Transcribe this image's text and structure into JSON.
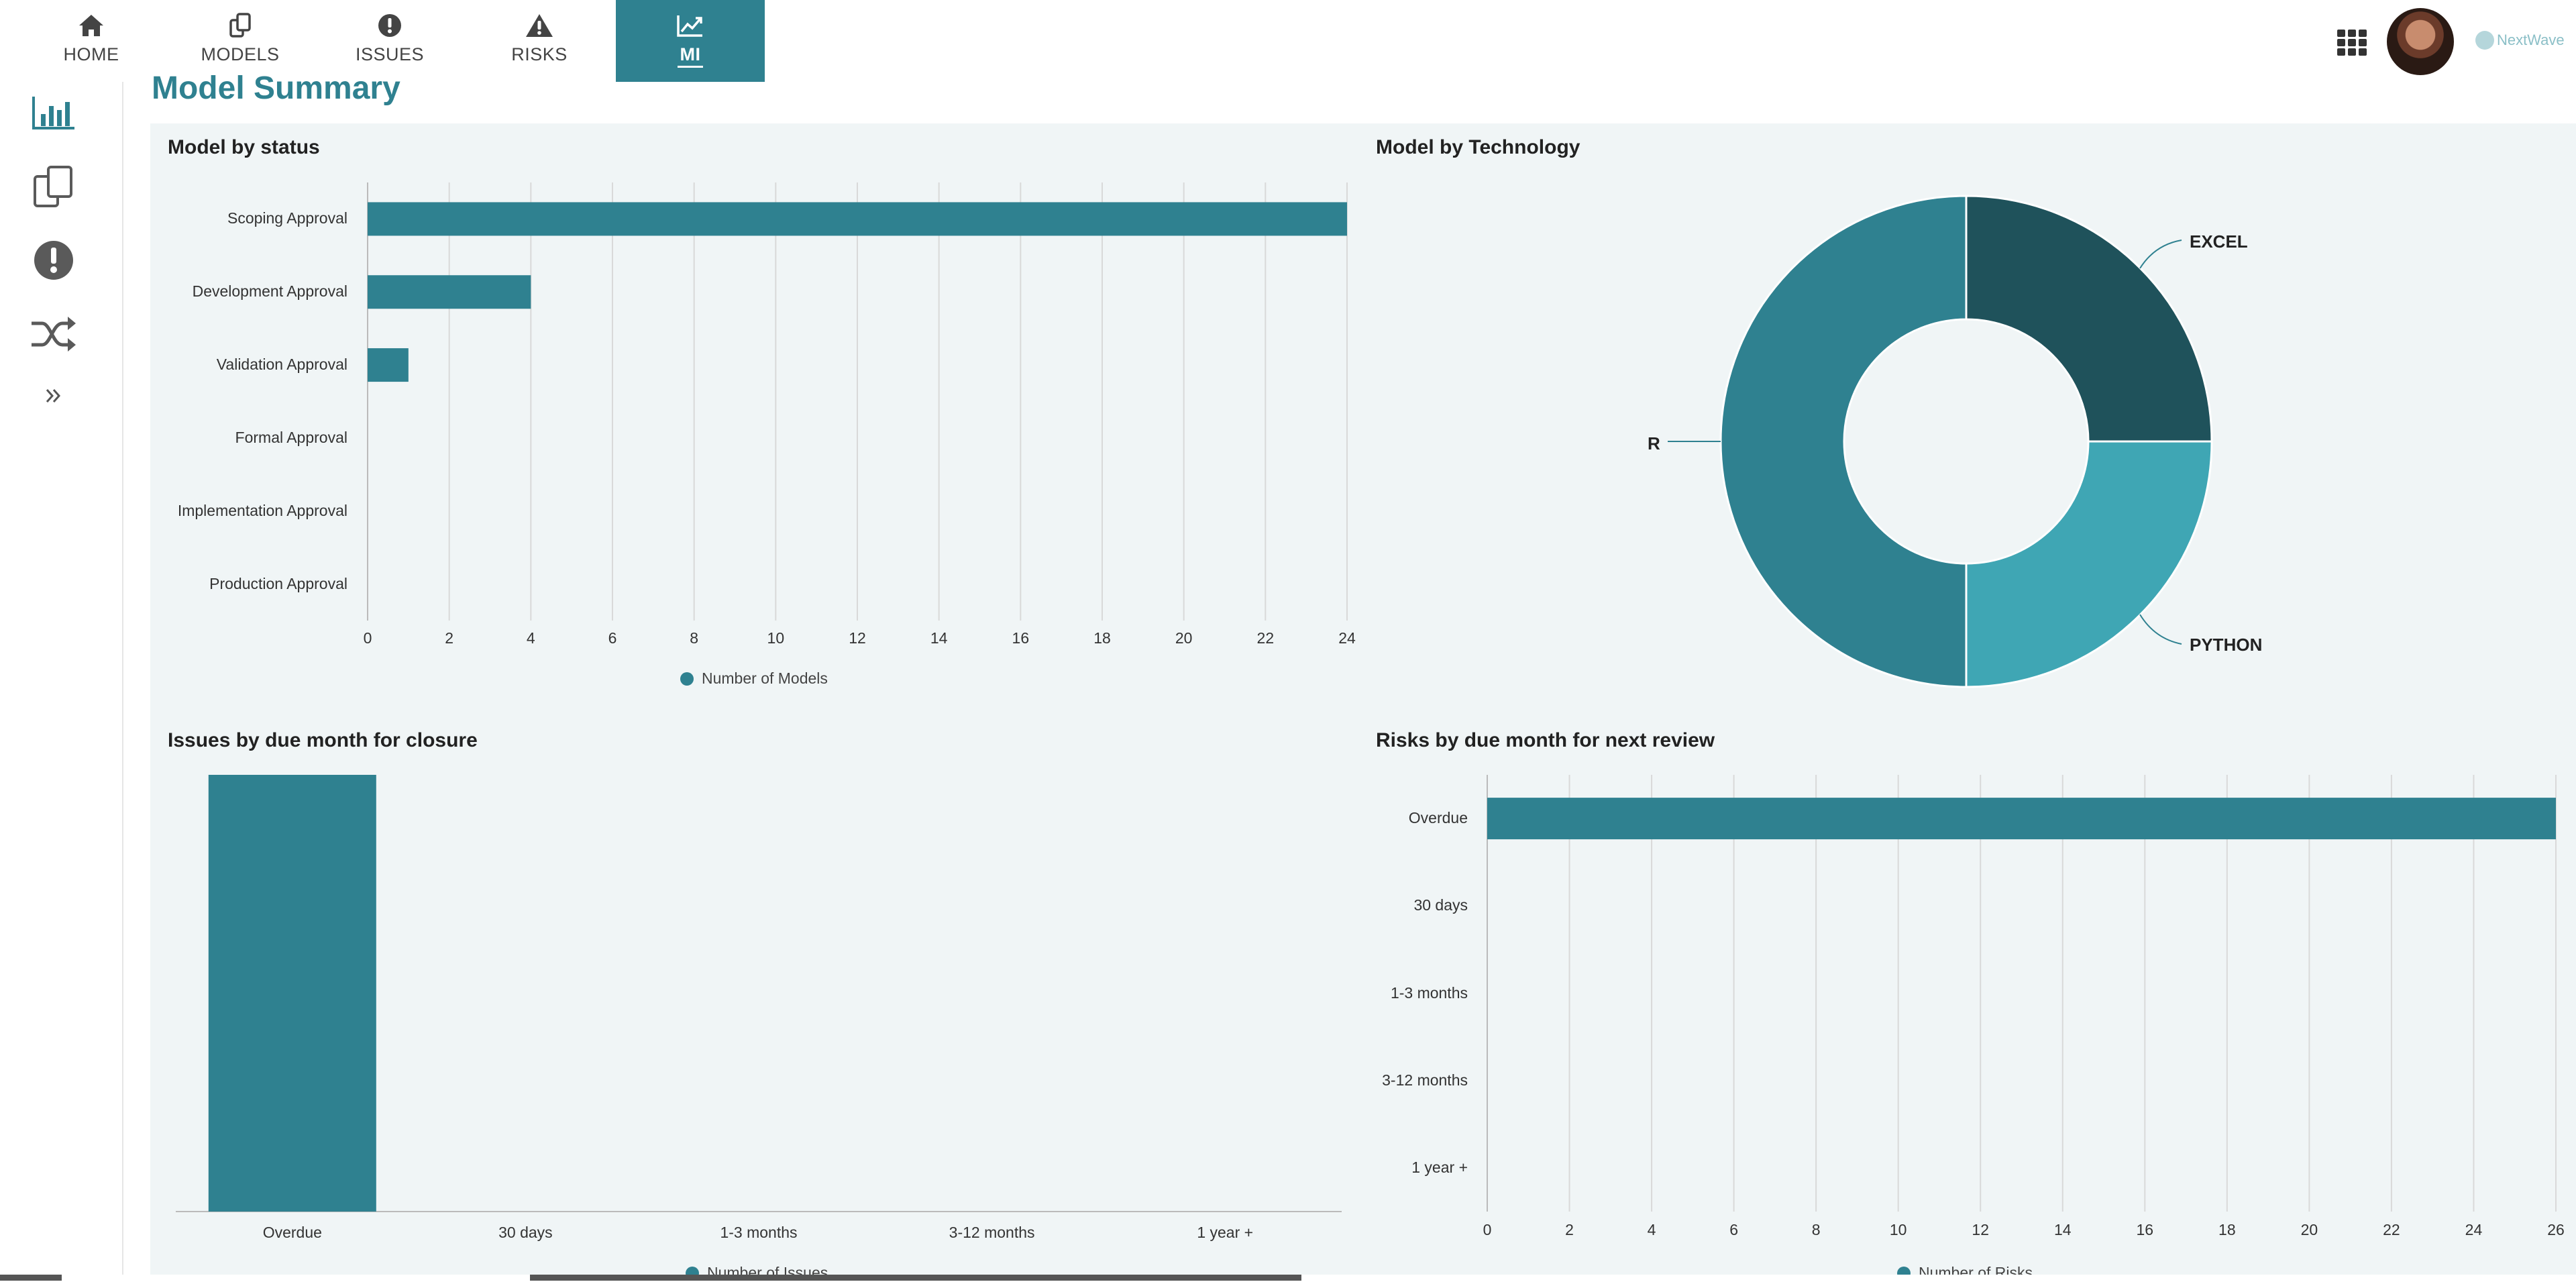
{
  "nav": {
    "tabs": [
      {
        "label": "HOME",
        "icon": "home-icon"
      },
      {
        "label": "MODELS",
        "icon": "models-icon"
      },
      {
        "label": "ISSUES",
        "icon": "issues-icon"
      },
      {
        "label": "RISKS",
        "icon": "risks-icon"
      },
      {
        "label": "MI",
        "icon": "mi-icon",
        "active": true
      }
    ],
    "brand": "NextWave"
  },
  "sidebar": {
    "items": [
      "bar-chart-icon",
      "models-icon",
      "issues-icon",
      "shuffle-icon",
      "expand-icon"
    ]
  },
  "page": {
    "title": "Model Summary"
  },
  "colors": {
    "primary": "#2f8190",
    "dark": "#1f525b",
    "light": "#3fa6b4",
    "panel_bg": "#f0f5f6"
  },
  "chart_data": [
    {
      "type": "bar",
      "orientation": "horizontal",
      "title": "Model by status",
      "categories": [
        "Scoping Approval",
        "Development Approval",
        "Validation Approval",
        "Formal Approval",
        "Implementation Approval",
        "Production Approval"
      ],
      "series": [
        {
          "name": "Number of Models",
          "values": [
            24,
            4,
            1,
            0,
            0,
            0
          ]
        }
      ],
      "xlim": [
        0,
        24
      ],
      "xticks": [
        "0",
        "2",
        "4",
        "6",
        "8",
        "10",
        "12",
        "14",
        "16",
        "18",
        "20",
        "22",
        "24"
      ],
      "grid": true,
      "legend": "bottom"
    },
    {
      "type": "pie",
      "title": "Model by Technology",
      "slices": [
        {
          "label": "EXCEL",
          "value": 25,
          "color": "#1f525b"
        },
        {
          "label": "PYTHON",
          "value": 25,
          "color": "#3fa6b4"
        },
        {
          "label": "R",
          "value": 50,
          "color": "#2f8190"
        }
      ],
      "donut": true
    },
    {
      "type": "bar",
      "orientation": "vertical",
      "title": "Issues by due month for closure",
      "categories": [
        "Overdue",
        "30 days",
        "1-3 months",
        "3-12 months",
        "1 year +"
      ],
      "series": [
        {
          "name": "Number of Issues",
          "values": [
            1,
            0,
            0,
            0,
            0
          ]
        }
      ],
      "ylim": [
        0,
        1
      ],
      "legend": "bottom"
    },
    {
      "type": "bar",
      "orientation": "horizontal",
      "title": "Risks by due month for next review",
      "categories": [
        "Overdue",
        "30 days",
        "1-3 months",
        "3-12 months",
        "1 year +"
      ],
      "series": [
        {
          "name": "Number of Risks",
          "values": [
            26,
            0,
            0,
            0,
            0
          ]
        }
      ],
      "xlim": [
        0,
        26
      ],
      "xticks": [
        "0",
        "2",
        "4",
        "6",
        "8",
        "10",
        "12",
        "14",
        "16",
        "18",
        "20",
        "22",
        "24",
        "26"
      ],
      "grid": true,
      "legend": "bottom"
    }
  ]
}
